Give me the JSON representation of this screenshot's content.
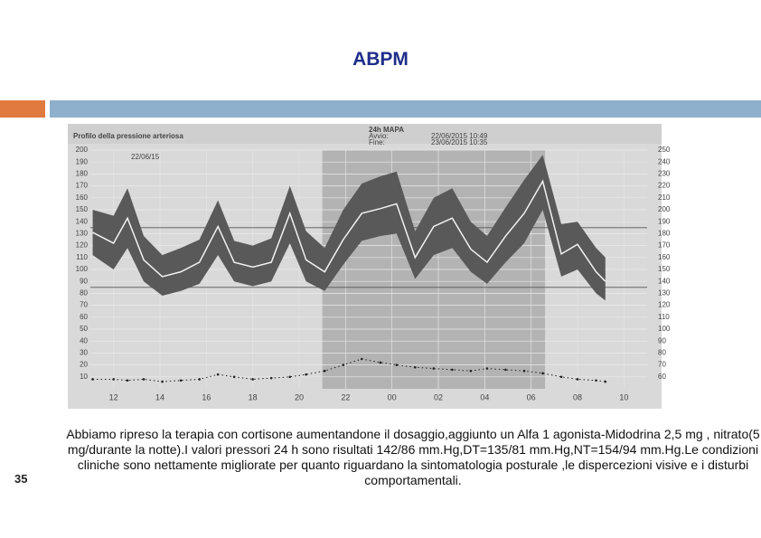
{
  "slide": {
    "title": "ABPM",
    "page_number": "35",
    "caption": "Abbiamo ripreso la terapia con cortisone aumentandone il dosaggio,aggiunto un Alfa 1 agonista-Midodrina 2,5 mg , nitrato(5 mg/durante la notte).I valori pressori 24 h sono risultati 142/86 mm.Hg,DT=135/81 mm.Hg,NT=154/94 mm.Hg.Le condizioni cliniche sono nettamente migliorate per quanto riguardano la sintomatologia posturale ,le dispercezioni visive e i disturbi comportamentali."
  },
  "chart_data": {
    "type": "band-line",
    "title": "Profilo della pressione arteriosa",
    "header": [
      "24h MAPA",
      "Avvio:",
      "22/06/2015 10:49",
      "Fine:",
      "23/06/2015 10:35"
    ],
    "start_date": "22/06/15",
    "x": [
      11.1,
      12.0,
      12.6,
      13.3,
      14.1,
      14.9,
      15.7,
      16.5,
      17.2,
      18.0,
      18.8,
      19.6,
      20.3,
      21.1,
      21.9,
      22.7,
      23.5,
      24.2,
      25.0,
      25.8,
      26.6,
      27.4,
      28.1,
      28.9,
      29.7,
      30.5,
      31.3,
      32.0,
      32.8,
      33.2
    ],
    "mean": [
      131,
      122,
      143,
      108,
      94,
      98,
      106,
      136,
      106,
      102,
      106,
      147,
      108,
      98,
      125,
      147,
      151,
      155,
      110,
      136,
      143,
      117,
      106,
      128,
      147,
      174,
      113,
      121,
      98,
      90
    ],
    "upper": [
      150,
      145,
      168,
      128,
      112,
      118,
      125,
      158,
      124,
      120,
      126,
      170,
      132,
      118,
      150,
      172,
      178,
      182,
      132,
      160,
      168,
      140,
      128,
      152,
      175,
      196,
      138,
      140,
      118,
      110
    ],
    "lower": [
      112,
      100,
      118,
      90,
      78,
      82,
      88,
      112,
      90,
      86,
      90,
      122,
      90,
      82,
      104,
      124,
      128,
      130,
      92,
      112,
      118,
      98,
      88,
      106,
      122,
      150,
      94,
      100,
      80,
      74
    ],
    "heart_rate": [
      58,
      58,
      57,
      58,
      56,
      57,
      58,
      62,
      60,
      58,
      59,
      60,
      62,
      65,
      70,
      75,
      72,
      70,
      68,
      67,
      66,
      65,
      67,
      66,
      65,
      63,
      60,
      58,
      57,
      56
    ],
    "band_color": "#595959",
    "line_color": "#f2f2f2",
    "hr_color": "#222222",
    "night_color": "#b3b3b3",
    "night": [
      21,
      30.6
    ],
    "xlim": [
      11,
      35
    ],
    "xticks": [
      12,
      14,
      16,
      18,
      20,
      22,
      {
        "value": 24,
        "label": "00"
      },
      {
        "value": 26,
        "label": "02"
      },
      {
        "value": 28,
        "label": "04"
      },
      {
        "value": 30,
        "label": "06"
      },
      {
        "value": 32,
        "label": "08"
      },
      {
        "value": 34,
        "label": "10"
      }
    ],
    "ylim": [
      0,
      200
    ],
    "yticks": [
      10,
      20,
      30,
      40,
      50,
      60,
      70,
      80,
      90,
      100,
      110,
      120,
      130,
      140,
      150,
      160,
      170,
      180,
      190,
      200
    ],
    "y2lim": [
      50,
      250
    ],
    "y2ticks": [
      60,
      70,
      80,
      90,
      100,
      110,
      120,
      130,
      140,
      150,
      160,
      170,
      180,
      190,
      200,
      210,
      220,
      230,
      240,
      250
    ],
    "reference_lines": [
      135,
      85
    ],
    "grid": true
  }
}
